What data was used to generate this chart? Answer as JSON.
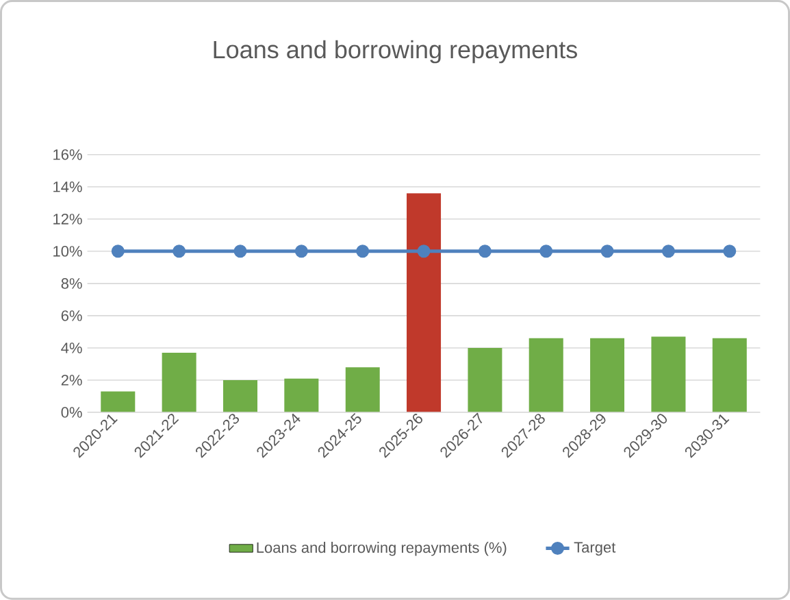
{
  "chart_data": {
    "type": "bar",
    "title": "Loans and borrowing repayments",
    "categories": [
      "2020-21",
      "2021-22",
      "2022-23",
      "2023-24",
      "2024-25",
      "2025-26",
      "2026-27",
      "2027-28",
      "2028-29",
      "2029-30",
      "2030-31"
    ],
    "series": [
      {
        "name": "Loans and borrowing repayments (%)",
        "color": "#70ad47",
        "colors": [
          "#70ad47",
          "#70ad47",
          "#70ad47",
          "#70ad47",
          "#70ad47",
          "#c0392b",
          "#70ad47",
          "#70ad47",
          "#70ad47",
          "#70ad47",
          "#70ad47"
        ],
        "values": [
          1.3,
          3.7,
          2.0,
          2.1,
          2.8,
          13.6,
          4.0,
          4.6,
          4.6,
          4.7,
          4.6
        ]
      },
      {
        "name": "Target",
        "type": "line",
        "color": "#4f81bd",
        "marker": "circle",
        "values": [
          10,
          10,
          10,
          10,
          10,
          10,
          10,
          10,
          10,
          10,
          10
        ]
      }
    ],
    "ylim": [
      0,
      16
    ],
    "yticks": [
      {
        "value": 0,
        "label": "0%"
      },
      {
        "value": 2,
        "label": "2%"
      },
      {
        "value": 4,
        "label": "4%"
      },
      {
        "value": 6,
        "label": "6%"
      },
      {
        "value": 8,
        "label": "8%"
      },
      {
        "value": 10,
        "label": "10%"
      },
      {
        "value": 12,
        "label": "12%"
      },
      {
        "value": 14,
        "label": "14%"
      },
      {
        "value": 16,
        "label": "16%"
      }
    ],
    "grid": "y",
    "legend": "bottom"
  }
}
